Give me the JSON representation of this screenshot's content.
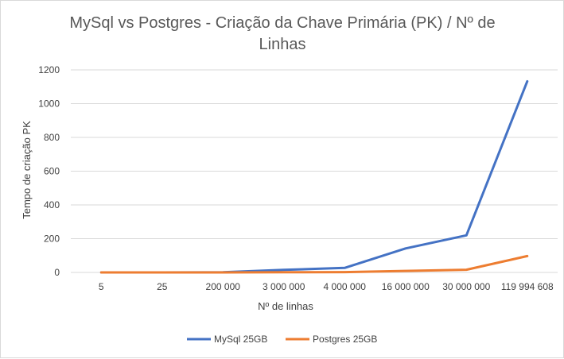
{
  "chart_data": {
    "type": "line",
    "title_line1": "MySql vs Postgres - Criação da Chave Primária (PK) / Nº de",
    "title_line2": "Linhas",
    "xlabel": "Nº de linhas",
    "ylabel": "Tempo de criação PK",
    "categories": [
      "5",
      "25",
      "200 000",
      "3 000 000",
      "4 000 000",
      "16 000 000",
      "30 000 000",
      "119 994 608"
    ],
    "y_ticks": [
      "0",
      "200",
      "400",
      "600",
      "800",
      "1000",
      "1200"
    ],
    "ylim": [
      0,
      1200
    ],
    "grid": true,
    "legend_position": "bottom",
    "series": [
      {
        "name": "MySql 25GB",
        "color": "#4472c4",
        "values": [
          0,
          0,
          1,
          15,
          27,
          142,
          220,
          1132
        ]
      },
      {
        "name": "Postgres 25GB",
        "color": "#ed7d31",
        "values": [
          0,
          0,
          0,
          1,
          2,
          9,
          16,
          97
        ]
      }
    ]
  }
}
